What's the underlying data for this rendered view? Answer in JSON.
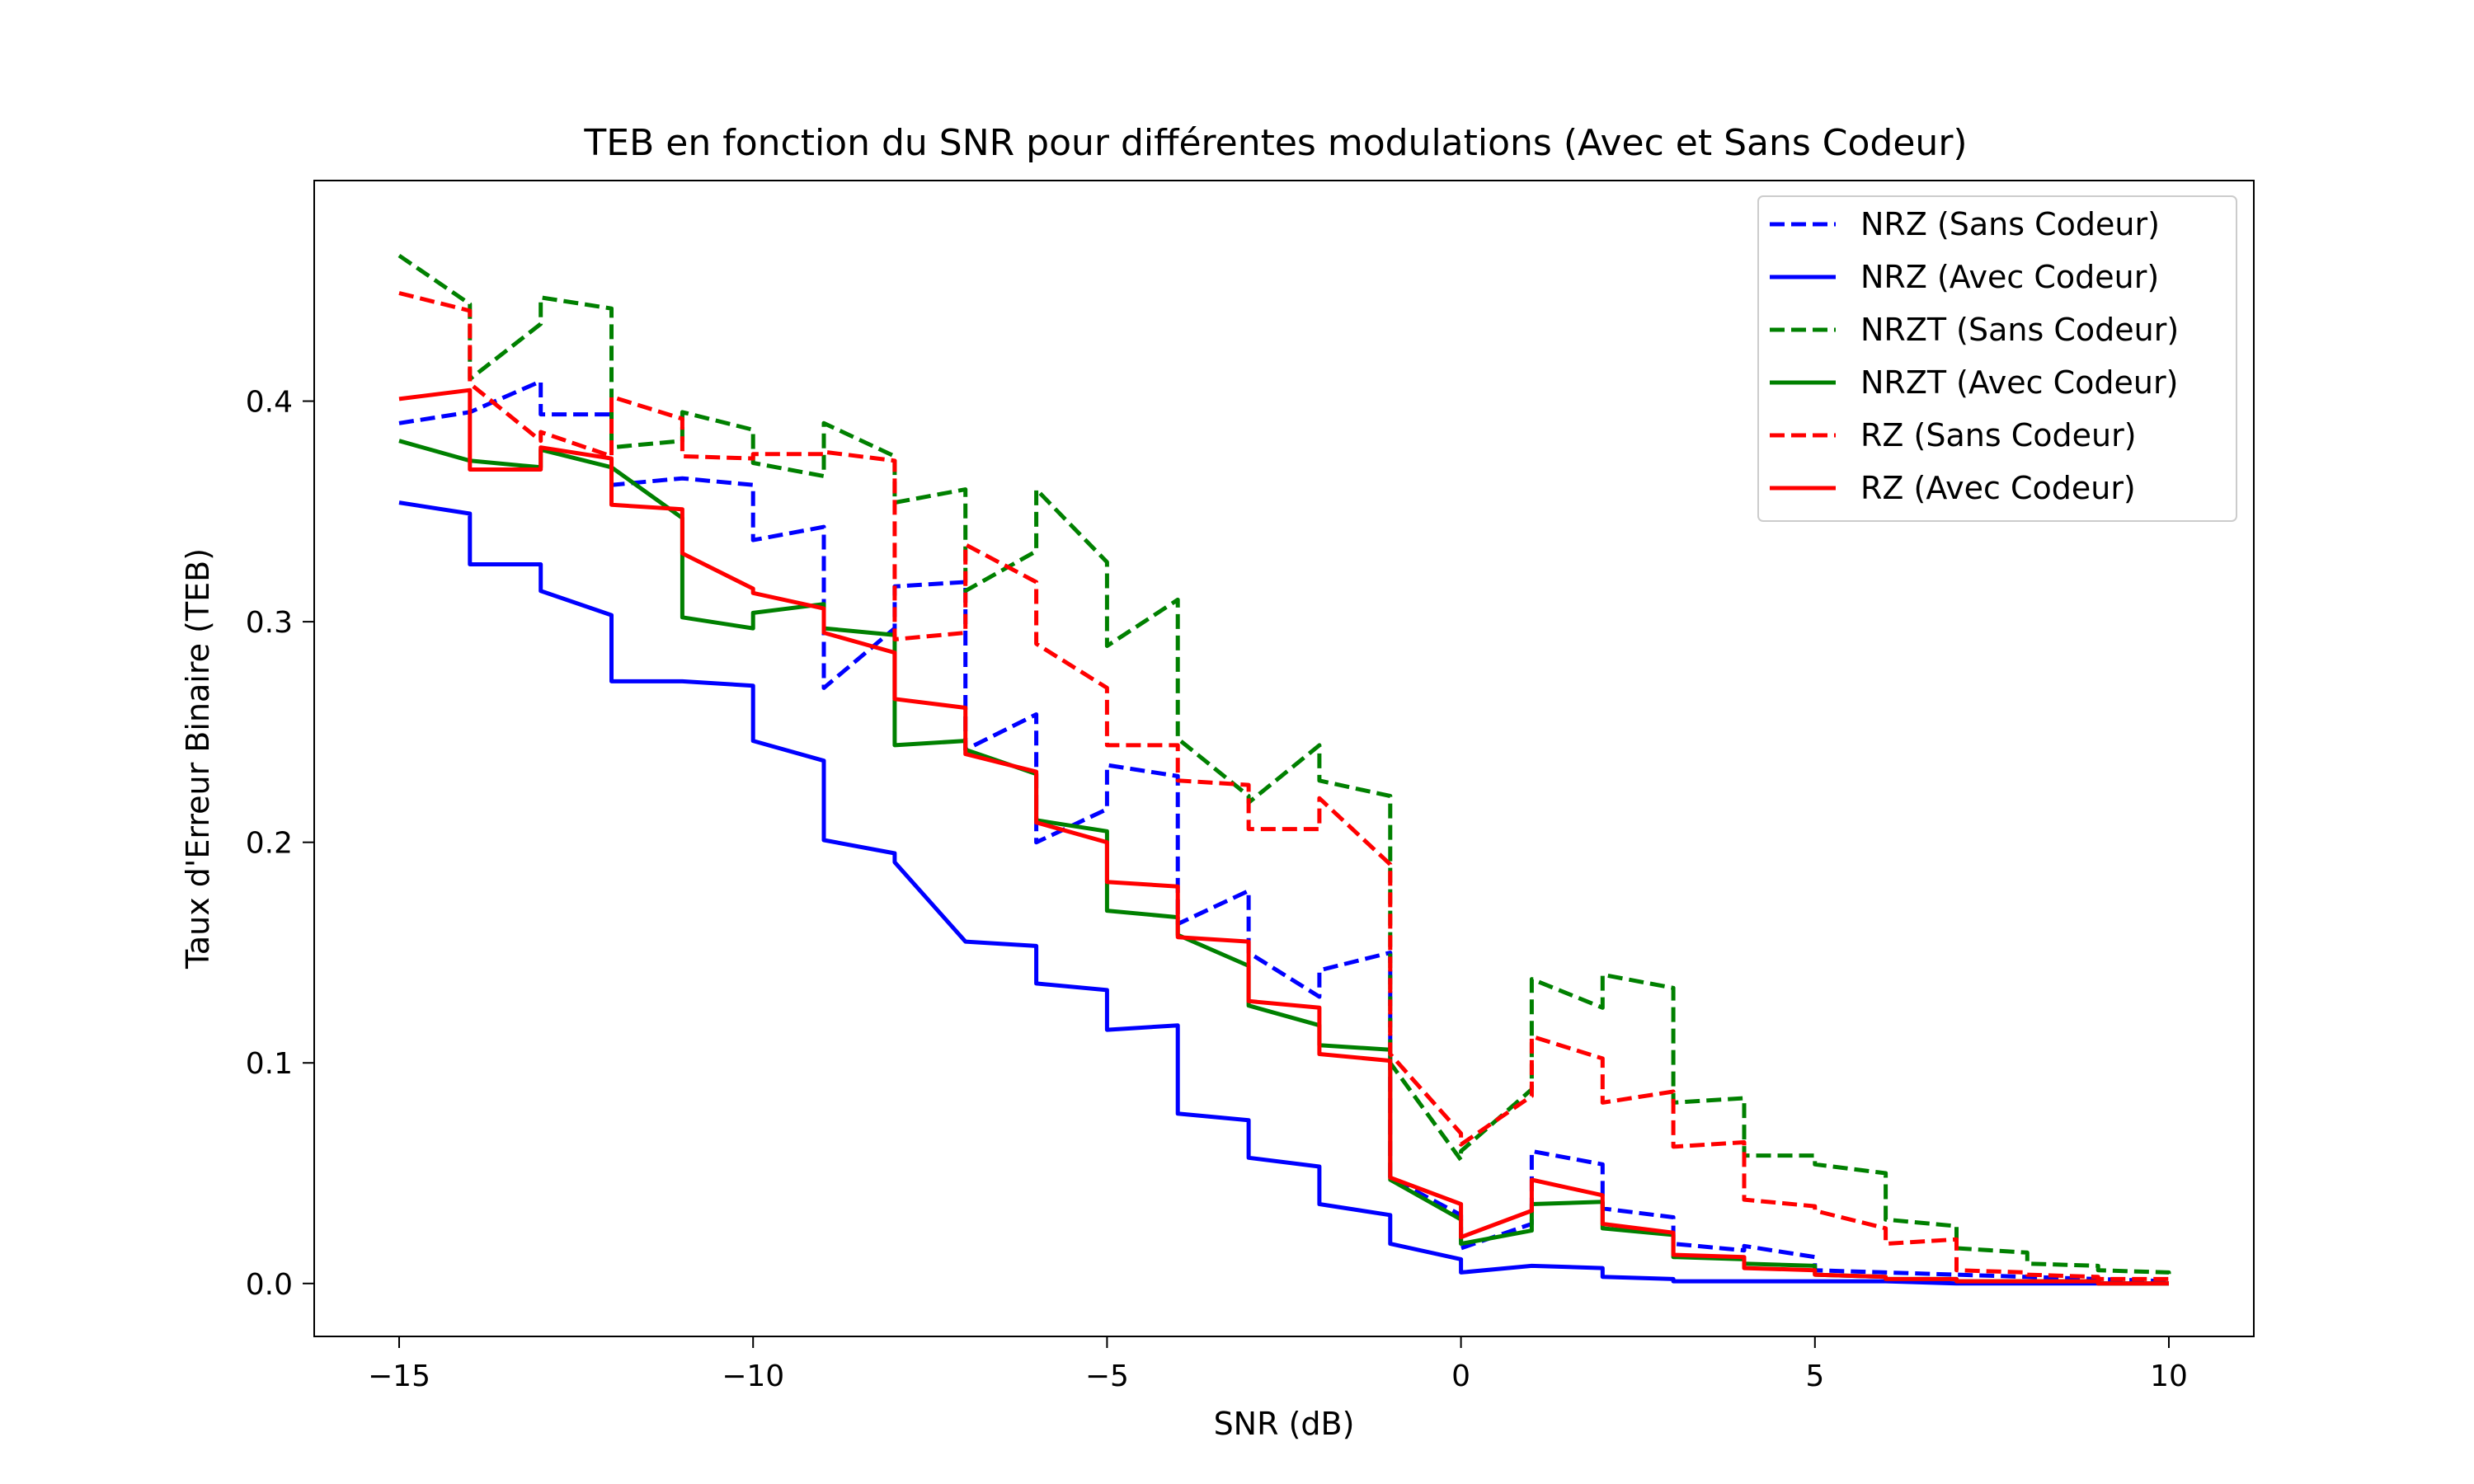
{
  "chart_data": {
    "type": "line",
    "title": "TEB en fonction du SNR pour différentes modulations (Avec et Sans Codeur)",
    "xlabel": "SNR (dB)",
    "ylabel": "Taux d'Erreur Binaire (TEB)",
    "xlim": [
      -16.2,
      11.2
    ],
    "ylim": [
      -0.024,
      0.5
    ],
    "xticks": [
      -15,
      -10,
      -5,
      0,
      5,
      10
    ],
    "xtick_labels": [
      "−15",
      "−10",
      "−5",
      "0",
      "5",
      "10"
    ],
    "yticks": [
      0.0,
      0.1,
      0.2,
      0.3,
      0.4
    ],
    "ytick_labels": [
      "0.0",
      "0.1",
      "0.2",
      "0.3",
      "0.4"
    ],
    "legend_position": "top-right",
    "grid": false,
    "x": [
      -15,
      -14,
      -13,
      -12,
      -11,
      -10,
      -9,
      -8,
      -7,
      -6,
      -5,
      -4,
      -3,
      -2,
      -1,
      0,
      1,
      2,
      3,
      4,
      5,
      6,
      7,
      8,
      9,
      10
    ],
    "series": [
      {
        "name": "NRZ (Sans Codeur)",
        "color": "#0000ff",
        "dash": "dashed",
        "values": [
          0.39,
          0.395,
          0.394,
          0.362,
          0.365,
          0.337,
          0.27,
          0.316,
          0.242,
          0.2,
          0.235,
          0.163,
          0.15,
          0.142,
          0.048,
          0.016,
          0.06,
          0.034,
          0.018,
          0.017,
          0.006,
          0.005,
          0.004,
          0.003,
          0.002,
          0.001
        ],
        "values_end": [
          0.395,
          0.409,
          0.394,
          0.365,
          0.362,
          0.343,
          0.297,
          0.318,
          0.258,
          0.215,
          0.23,
          0.178,
          0.13,
          0.15,
          0.031,
          0.027,
          0.054,
          0.03,
          0.015,
          0.012,
          0.005,
          0.004,
          0.003,
          0.002,
          0.001,
          0.001
        ]
      },
      {
        "name": "NRZ (Avec Codeur)",
        "color": "#0000ff",
        "dash": "solid",
        "values": [
          0.354,
          0.326,
          0.314,
          0.273,
          0.273,
          0.246,
          0.201,
          0.191,
          0.155,
          0.136,
          0.115,
          0.077,
          0.057,
          0.036,
          0.018,
          0.005,
          0.008,
          0.003,
          0.001,
          0.001,
          0.001,
          0.001,
          0.0,
          0.0,
          0.0,
          0.0
        ],
        "values_end": [
          0.349,
          0.326,
          0.303,
          0.273,
          0.271,
          0.237,
          0.195,
          0.155,
          0.153,
          0.133,
          0.117,
          0.074,
          0.053,
          0.031,
          0.011,
          0.008,
          0.007,
          0.002,
          0.001,
          0.001,
          0.001,
          0.0,
          0.0,
          0.0,
          0.0,
          0.0
        ]
      },
      {
        "name": "NRZT (Sans Codeur)",
        "color": "#008000",
        "dash": "dashed",
        "values": [
          0.466,
          0.41,
          0.447,
          0.379,
          0.395,
          0.372,
          0.39,
          0.354,
          0.314,
          0.36,
          0.289,
          0.247,
          0.218,
          0.228,
          0.1,
          0.06,
          0.138,
          0.14,
          0.082,
          0.058,
          0.054,
          0.029,
          0.016,
          0.009,
          0.006,
          0.004
        ],
        "values_end": [
          0.444,
          0.435,
          0.442,
          0.382,
          0.387,
          0.366,
          0.375,
          0.36,
          0.332,
          0.327,
          0.31,
          0.221,
          0.244,
          0.221,
          0.056,
          0.088,
          0.125,
          0.134,
          0.084,
          0.058,
          0.05,
          0.026,
          0.014,
          0.008,
          0.005,
          0.004
        ]
      },
      {
        "name": "NRZT (Avec Codeur)",
        "color": "#008000",
        "dash": "solid",
        "values": [
          0.382,
          0.373,
          0.378,
          0.37,
          0.302,
          0.304,
          0.297,
          0.244,
          0.242,
          0.21,
          0.169,
          0.158,
          0.126,
          0.108,
          0.047,
          0.018,
          0.036,
          0.025,
          0.012,
          0.009,
          0.004,
          0.002,
          0.001,
          0.001,
          0.0,
          0.0
        ],
        "values_end": [
          0.373,
          0.37,
          0.37,
          0.347,
          0.297,
          0.308,
          0.294,
          0.246,
          0.231,
          0.205,
          0.166,
          0.144,
          0.117,
          0.106,
          0.029,
          0.024,
          0.037,
          0.022,
          0.011,
          0.008,
          0.003,
          0.002,
          0.001,
          0.001,
          0.0,
          0.0
        ]
      },
      {
        "name": "RZ (Sans Codeur)",
        "color": "#ff0000",
        "dash": "dashed",
        "values": [
          0.449,
          0.408,
          0.386,
          0.402,
          0.375,
          0.376,
          0.377,
          0.292,
          0.335,
          0.29,
          0.244,
          0.228,
          0.206,
          0.22,
          0.104,
          0.063,
          0.112,
          0.082,
          0.062,
          0.038,
          0.033,
          0.018,
          0.006,
          0.004,
          0.002,
          0.001
        ],
        "values_end": [
          0.441,
          0.382,
          0.375,
          0.392,
          0.374,
          0.376,
          0.373,
          0.295,
          0.318,
          0.27,
          0.244,
          0.226,
          0.206,
          0.19,
          0.068,
          0.085,
          0.102,
          0.087,
          0.064,
          0.035,
          0.025,
          0.02,
          0.005,
          0.003,
          0.002,
          0.001
        ]
      },
      {
        "name": "RZ (Avec Codeur)",
        "color": "#ff0000",
        "dash": "solid",
        "values": [
          0.401,
          0.369,
          0.379,
          0.353,
          0.331,
          0.313,
          0.295,
          0.265,
          0.24,
          0.209,
          0.182,
          0.157,
          0.128,
          0.104,
          0.048,
          0.021,
          0.047,
          0.027,
          0.013,
          0.007,
          0.004,
          0.002,
          0.001,
          0.001,
          0.0,
          0.0
        ],
        "values_end": [
          0.405,
          0.369,
          0.374,
          0.351,
          0.315,
          0.306,
          0.286,
          0.261,
          0.232,
          0.2,
          0.18,
          0.155,
          0.125,
          0.101,
          0.036,
          0.033,
          0.04,
          0.023,
          0.012,
          0.006,
          0.003,
          0.002,
          0.001,
          0.001,
          0.0,
          0.0
        ]
      }
    ]
  }
}
